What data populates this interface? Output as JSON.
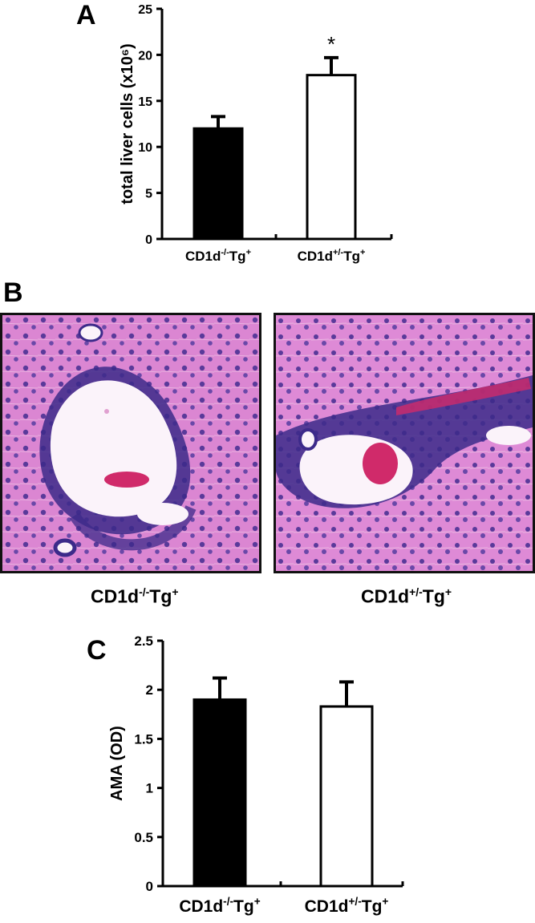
{
  "panels": {
    "A": {
      "letter": "A"
    },
    "B": {
      "letter": "B",
      "images": [
        {
          "caption_base": "CD1d",
          "caption_sup": "-/-",
          "caption_mid": "Tg",
          "caption_sup2": "+"
        },
        {
          "caption_base": "CD1d",
          "caption_sup": "+/-",
          "caption_mid": "Tg",
          "caption_sup2": "+"
        }
      ]
    },
    "C": {
      "letter": "C"
    }
  },
  "colors": {
    "filled_bar": "#000000",
    "open_bar": "#ffffff",
    "tissue_pink": "#d880d0",
    "nuclei": "#3c2a8a",
    "rbc": "#d02a6a"
  },
  "chart_data": [
    {
      "type": "bar",
      "panel": "A",
      "title": "",
      "xlabel": "",
      "ylabel": "total liver cells (x10⁶)",
      "ylim": [
        0,
        25
      ],
      "yticks": [
        "0",
        "5",
        "10",
        "15",
        "20",
        "25"
      ],
      "categories": [
        "CD1d-/-Tg+",
        "CD1d+/-Tg+"
      ],
      "category_labels": [
        {
          "base": "CD1d",
          "sup": "-/-",
          "mid": "Tg",
          "sup2": "+"
        },
        {
          "base": "CD1d",
          "sup": "+/-",
          "mid": "Tg",
          "sup2": "+"
        }
      ],
      "values": [
        12,
        17.8
      ],
      "errors": [
        1.3,
        1.9
      ],
      "fills": [
        "filled",
        "open"
      ],
      "annotations": [
        "",
        "*"
      ]
    },
    {
      "type": "bar",
      "panel": "C",
      "title": "",
      "xlabel": "",
      "ylabel": "AMA (OD)",
      "ylim": [
        0,
        2.5
      ],
      "yticks": [
        "0",
        "0.5",
        "1",
        "1.5",
        "2",
        "2.5"
      ],
      "categories": [
        "CD1d-/-Tg+",
        "CD1d+/-Tg+"
      ],
      "category_labels": [
        {
          "base": "CD1d",
          "sup": "-/-",
          "mid": "Tg",
          "sup2": "+"
        },
        {
          "base": "CD1d",
          "sup": "+/-",
          "mid": "Tg",
          "sup2": "+"
        }
      ],
      "values": [
        1.9,
        1.83
      ],
      "errors": [
        0.22,
        0.25
      ],
      "fills": [
        "filled",
        "open"
      ],
      "annotations": [
        "",
        ""
      ]
    }
  ]
}
